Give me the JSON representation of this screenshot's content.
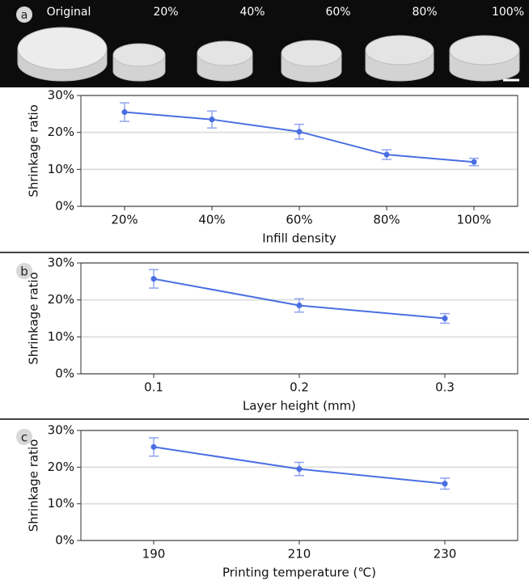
{
  "photo_labels": [
    "Original",
    "20%",
    "40%",
    "60%",
    "80%",
    "100%"
  ],
  "panel_labels": [
    "a",
    "b",
    "c"
  ],
  "chart_data": [
    {
      "type": "line",
      "x_label": "Infill density",
      "y_label": "Shrinkage ratio",
      "categories": [
        "20%",
        "40%",
        "60%",
        "80%",
        "100%"
      ],
      "values": [
        25.5,
        23.5,
        20.2,
        14,
        12
      ],
      "errors": [
        2.5,
        2.3,
        2,
        1.3,
        1
      ],
      "color": "#4a6fe3",
      "error_color": "#8fa4f0",
      "ylim": [
        0,
        30
      ],
      "yticks": [
        {
          "value": 0,
          "label": "0%"
        },
        {
          "value": 10,
          "label": "10%"
        },
        {
          "value": 20,
          "label": "20%"
        },
        {
          "value": 30,
          "label": "30%"
        }
      ],
      "grid": true
    },
    {
      "type": "line",
      "x_label": "Layer height (mm)",
      "y_label": "Shrinkage ratio",
      "categories": [
        "0.1",
        "0.2",
        "0.3"
      ],
      "values": [
        25.7,
        18.5,
        15
      ],
      "errors": [
        2.5,
        1.8,
        1.3
      ],
      "color": "#4a6fe3",
      "error_color": "#8fa4f0",
      "ylim": [
        0,
        30
      ],
      "yticks": [
        {
          "value": 0,
          "label": "0%"
        },
        {
          "value": 10,
          "label": "10%"
        },
        {
          "value": 20,
          "label": "20%"
        },
        {
          "value": 30,
          "label": "30%"
        }
      ],
      "grid": true
    },
    {
      "type": "line",
      "x_label": "Printing temperature (℃)",
      "y_label": "Shrinkage ratio",
      "categories": [
        "190",
        "210",
        "230"
      ],
      "values": [
        25.5,
        19.5,
        15.5
      ],
      "errors": [
        2.5,
        1.8,
        1.5
      ],
      "color": "#4a6fe3",
      "error_color": "#8fa4f0",
      "ylim": [
        0,
        30
      ],
      "yticks": [
        {
          "value": 0,
          "label": "0%"
        },
        {
          "value": 10,
          "label": "10%"
        },
        {
          "value": 20,
          "label": "20%"
        },
        {
          "value": 30,
          "label": "30%"
        }
      ],
      "grid": true
    }
  ]
}
